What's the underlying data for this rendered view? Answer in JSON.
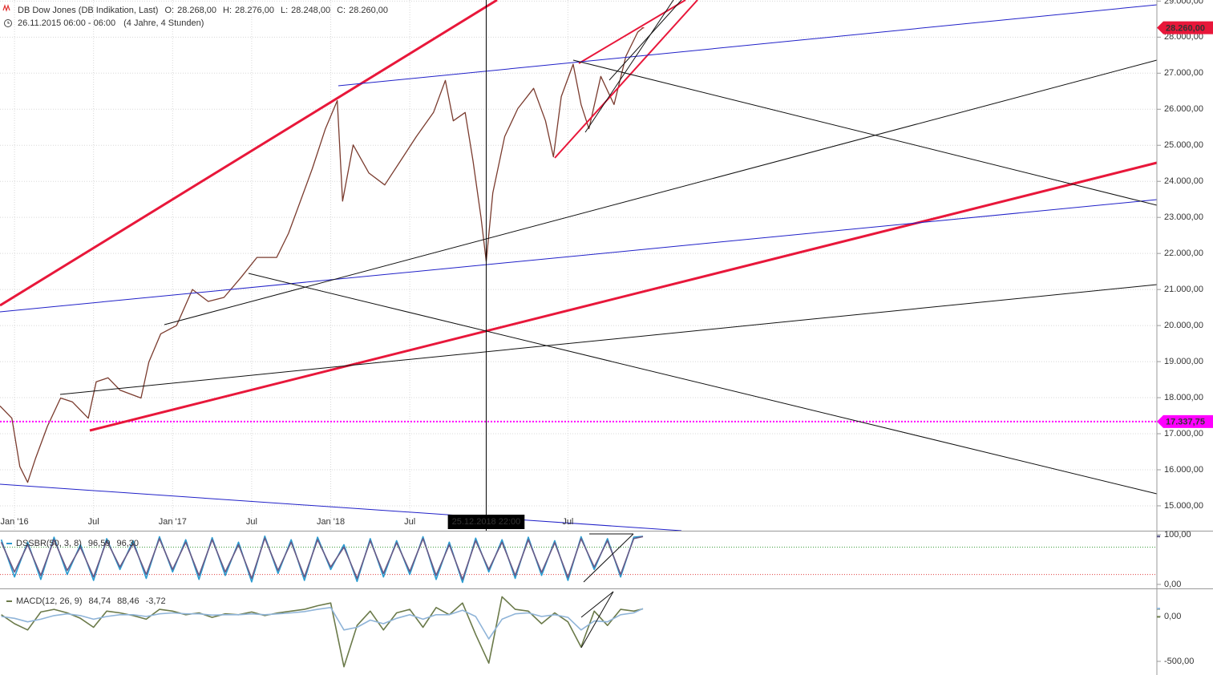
{
  "chart_data": [
    {
      "type": "candlestick-line",
      "title": "DB Dow Jones (DB Indikation, Last)",
      "ohlc": {
        "labels": [
          "O:",
          "H:",
          "L:",
          "C:"
        ],
        "values": [
          28268,
          28276,
          28248,
          28260
        ],
        "value_labels": [
          "28.268,00",
          "28.276,00",
          "28.248,00",
          "28.260,00"
        ]
      },
      "subtitle": "26.11.2015 06:00 - 06:00",
      "period": "(4 Jahre, 4 Stunden)",
      "x": [
        -1.1,
        -0.2,
        0.4,
        1.0,
        1.6,
        2.5,
        3.5,
        4.4,
        5.6,
        6.2,
        7.1,
        8.0,
        9.6,
        10.2,
        11.1,
        12.3,
        13.5,
        14.7,
        15.9,
        17.2,
        18.4,
        19.9,
        20.8,
        21.7,
        22.6,
        23.6,
        24.5,
        24.9,
        25.7,
        26.9,
        28.1,
        29.3,
        30.5,
        31.8,
        32.7,
        33.3,
        34.2,
        34.8,
        35.4,
        35.8,
        36.3,
        37.2,
        38.2,
        39.4,
        40.3,
        40.9,
        41.5,
        42.4,
        43.0,
        43.6,
        44.5,
        45.5,
        46.4,
        47.3,
        47.7
      ],
      "series": [
        {
          "color": "#7a3b2e",
          "values": [
            17770,
            17430,
            16090,
            15650,
            16320,
            17210,
            17990,
            17880,
            17430,
            18440,
            18550,
            18210,
            17990,
            18990,
            19770,
            20000,
            21000,
            20670,
            20780,
            21340,
            21890,
            21890,
            22560,
            23450,
            24350,
            25460,
            26240,
            23450,
            25010,
            24230,
            23900,
            24570,
            25240,
            25910,
            26800,
            25680,
            25910,
            24570,
            23010,
            21780,
            23680,
            25240,
            26020,
            26580,
            25680,
            24680,
            26350,
            27250,
            26130,
            25460,
            26910,
            26130,
            27470,
            28140,
            28260
          ]
        }
      ],
      "xlim": [
        -1.1,
        86.7
      ],
      "xticks": [
        {
          "value": 0,
          "label": "Jan '16"
        },
        {
          "value": 6,
          "label": "Jul"
        },
        {
          "value": 12,
          "label": "Jan '17"
        },
        {
          "value": 18,
          "label": "Jul"
        },
        {
          "value": 24,
          "label": "Jan '18"
        },
        {
          "value": 30,
          "label": "Jul"
        },
        {
          "value": 42,
          "label": "Jul"
        }
      ],
      "ylim": [
        14310,
        29030
      ],
      "yticks": [
        {
          "value": 29000,
          "label": "29.000,00"
        },
        {
          "value": 28000,
          "label": "28.000,00"
        },
        {
          "value": 27000,
          "label": "27.000,00"
        },
        {
          "value": 26000,
          "label": "26.000,00"
        },
        {
          "value": 25000,
          "label": "25.000,00"
        },
        {
          "value": 24000,
          "label": "24.000,00"
        },
        {
          "value": 23000,
          "label": "23.000,00"
        },
        {
          "value": 22000,
          "label": "22.000,00"
        },
        {
          "value": 21000,
          "label": "21.000,00"
        },
        {
          "value": 20000,
          "label": "20.000,00"
        },
        {
          "value": 19000,
          "label": "19.000,00"
        },
        {
          "value": 18000,
          "label": "18.000,00"
        },
        {
          "value": 17000,
          "label": "17.000,00"
        },
        {
          "value": 16000,
          "label": "16.000,00"
        },
        {
          "value": 15000,
          "label": "15.000,00"
        }
      ],
      "grid": true,
      "price_tags": [
        {
          "value": 28260,
          "label": "28.260,00",
          "color": "#e8173a",
          "line": false
        },
        {
          "value": 17337.75,
          "label": "17.337,75",
          "color": "#ff00ff",
          "line": true
        }
      ],
      "crosshair": {
        "x": 35.8,
        "label": "25.12.2018 22:00"
      }
    },
    {
      "type": "line",
      "title": "DSSBR(50, 3, 8)",
      "readout": {
        "values": [
          96.59,
          96.3
        ],
        "value_labels": [
          "96,59",
          "96,30"
        ]
      },
      "x": [
        -1,
        0,
        1,
        2,
        3,
        4,
        5,
        6,
        7,
        8,
        9,
        10,
        11,
        12,
        13,
        14,
        15,
        16,
        17,
        18,
        19,
        20,
        21,
        22,
        23,
        24,
        25,
        26,
        27,
        28,
        29,
        30,
        31,
        32,
        33,
        34,
        35,
        36,
        37,
        38,
        39,
        40,
        41,
        42,
        43,
        44,
        45,
        46,
        47,
        47.7
      ],
      "series": [
        {
          "color": "#2a9bd0",
          "values": [
            90,
            15,
            85,
            10,
            95,
            20,
            80,
            8,
            92,
            30,
            88,
            12,
            96,
            25,
            90,
            10,
            94,
            18,
            85,
            5,
            97,
            22,
            90,
            8,
            95,
            30,
            80,
            6,
            92,
            15,
            88,
            20,
            96,
            10,
            85,
            4,
            93,
            25,
            90,
            12,
            95,
            18,
            88,
            8,
            96,
            30,
            92,
            15,
            95,
            96.59
          ]
        },
        {
          "color": "#6a5a86",
          "values": [
            85,
            25,
            80,
            18,
            90,
            28,
            75,
            15,
            88,
            35,
            82,
            20,
            92,
            30,
            85,
            18,
            90,
            25,
            80,
            12,
            93,
            28,
            85,
            15,
            90,
            35,
            75,
            12,
            88,
            22,
            84,
            26,
            92,
            18,
            80,
            10,
            88,
            30,
            85,
            18,
            90,
            24,
            84,
            14,
            92,
            35,
            88,
            20,
            92,
            96.3
          ]
        }
      ],
      "levels": [
        {
          "value": 75,
          "color": "#3c9c3c"
        },
        {
          "value": 20,
          "color": "#e04040"
        }
      ],
      "xlim": [
        -1.1,
        86.7
      ],
      "ylim": [
        -6.5,
        104.8
      ],
      "yticks": [
        {
          "value": 100,
          "label": "100,00"
        },
        {
          "value": 0,
          "label": "0,00"
        }
      ]
    },
    {
      "type": "line",
      "title": "MACD(12, 26, 9)",
      "readout": {
        "values": [
          84.74,
          88.46,
          -3.72
        ],
        "value_labels": [
          "84,74",
          "88,46",
          "-3,72"
        ]
      },
      "x": [
        -1,
        0,
        1,
        2,
        3,
        4,
        5,
        6,
        7,
        8,
        9,
        10,
        11,
        12,
        13,
        14,
        15,
        16,
        17,
        18,
        19,
        20,
        21,
        22,
        23,
        24,
        25,
        26,
        27,
        28,
        29,
        30,
        31,
        32,
        33,
        34,
        35,
        36,
        37,
        38,
        39,
        40,
        41,
        42,
        43,
        44,
        45,
        46,
        47,
        47.7
      ],
      "series": [
        {
          "color": "#6b7a4a",
          "values": [
            20,
            -80,
            -150,
            50,
            80,
            40,
            -20,
            -120,
            60,
            40,
            10,
            -30,
            80,
            60,
            20,
            40,
            -10,
            30,
            20,
            50,
            10,
            40,
            60,
            80,
            120,
            150,
            -560,
            -100,
            60,
            -150,
            40,
            80,
            -120,
            100,
            20,
            150,
            -200,
            -520,
            220,
            80,
            60,
            -80,
            40,
            -60,
            -340,
            60,
            -100,
            80,
            60,
            84.74
          ]
        },
        {
          "color": "#8fb4d8",
          "values": [
            0,
            -20,
            -60,
            -30,
            10,
            30,
            10,
            -30,
            0,
            20,
            20,
            0,
            30,
            40,
            30,
            30,
            15,
            20,
            20,
            30,
            20,
            30,
            40,
            55,
            80,
            100,
            -150,
            -120,
            -40,
            -80,
            -20,
            20,
            -30,
            20,
            20,
            70,
            0,
            -250,
            -30,
            30,
            40,
            0,
            20,
            -10,
            -150,
            -50,
            -60,
            20,
            40,
            88.46
          ]
        }
      ],
      "xlim": [
        -1.1,
        86.7
      ],
      "ylim": [
        -652,
        295
      ],
      "yticks": [
        {
          "value": 0,
          "label": "0,00"
        },
        {
          "value": -500,
          "label": "-500,00"
        }
      ]
    }
  ]
}
